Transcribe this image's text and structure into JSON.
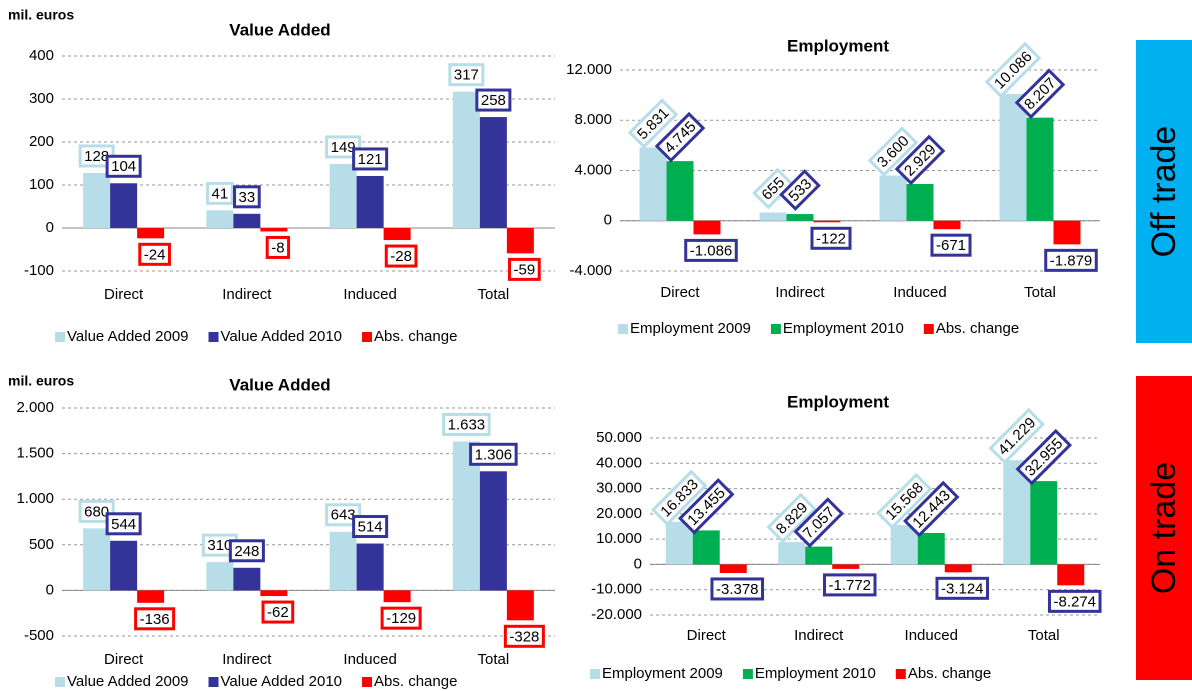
{
  "chart_data": [
    {
      "type": "bar",
      "title": "Value Added",
      "ylabel": "mil. euros",
      "categories": [
        "Direct",
        "Indirect",
        "Induced",
        "Total"
      ],
      "series": [
        {
          "name": "Value Added 2009",
          "color": "#b7dee8",
          "label_color": "#b7dee8",
          "values": [
            128,
            41,
            149,
            317
          ]
        },
        {
          "name": "Value Added 2010",
          "color": "#333399",
          "label_color": "#333399",
          "values": [
            104,
            33,
            121,
            258
          ]
        },
        {
          "name": "Abs. change",
          "color": "#ff0000",
          "label_color": "#ff0000",
          "values": [
            -24,
            -8,
            -28,
            -59
          ]
        }
      ],
      "ylim": [
        -100,
        400
      ],
      "yticks": [
        -100,
        0,
        100,
        200,
        300,
        400
      ],
      "grid": true
    },
    {
      "type": "bar",
      "title": "Employment",
      "label_rotation": -45,
      "categories": [
        "Direct",
        "Indirect",
        "Induced",
        "Total"
      ],
      "series": [
        {
          "name": "Employment 2009",
          "color": "#b7dee8",
          "label_color": "#b7dee8",
          "values": [
            5831,
            655,
            3600,
            10086
          ],
          "value_labels": [
            "5.831",
            "655",
            "3.600",
            "10.086"
          ]
        },
        {
          "name": "Employment 2010",
          "color": "#00b050",
          "label_color": "#333399",
          "values": [
            4745,
            533,
            2929,
            8207
          ],
          "value_labels": [
            "4.745",
            "533",
            "2.929",
            "8.207"
          ]
        },
        {
          "name": "Abs. change",
          "color": "#ff0000",
          "label_color": "#333399",
          "values": [
            -1086,
            -122,
            -671,
            -1879
          ],
          "value_labels": [
            "-1.086",
            "-122",
            "-671",
            "-1.879"
          ]
        }
      ],
      "ylim": [
        -4000,
        12000
      ],
      "yticks": [
        {
          "value": -4000,
          "label": "-4.000"
        },
        0,
        {
          "value": 4000,
          "label": "4.000"
        },
        {
          "value": 8000,
          "label": "8.000"
        },
        {
          "value": 12000,
          "label": "12.000"
        }
      ],
      "grid": true
    },
    {
      "type": "bar",
      "title": "Value Added",
      "ylabel": "mil. euros",
      "categories": [
        "Direct",
        "Indirect",
        "Induced",
        "Total"
      ],
      "series": [
        {
          "name": "Value Added 2009",
          "color": "#b7dee8",
          "label_color": "#b7dee8",
          "values": [
            680,
            310,
            643,
            1633
          ],
          "value_labels": [
            "680",
            "310",
            "643",
            "1.633"
          ]
        },
        {
          "name": "Value Added 2010",
          "color": "#333399",
          "label_color": "#333399",
          "values": [
            544,
            248,
            514,
            1306
          ],
          "value_labels": [
            "544",
            "248",
            "514",
            "1.306"
          ]
        },
        {
          "name": "Abs. change",
          "color": "#ff0000",
          "label_color": "#ff0000",
          "values": [
            -136,
            -62,
            -129,
            -328
          ]
        }
      ],
      "ylim": [
        -500,
        2000
      ],
      "yticks": [
        -500,
        0,
        500,
        {
          "value": 1000,
          "label": "1.000"
        },
        {
          "value": 1500,
          "label": "1.500"
        },
        {
          "value": 2000,
          "label": "2.000"
        }
      ],
      "grid": true
    },
    {
      "type": "bar",
      "title": "Employment",
      "label_rotation": -45,
      "categories": [
        "Direct",
        "Indirect",
        "Induced",
        "Total"
      ],
      "series": [
        {
          "name": "Employment 2009",
          "color": "#b7dee8",
          "label_color": "#b7dee8",
          "values": [
            16833,
            8829,
            15568,
            41229
          ],
          "value_labels": [
            "16.833",
            "8.829",
            "15.568",
            "41.229"
          ]
        },
        {
          "name": "Employment 2010",
          "color": "#00b050",
          "label_color": "#333399",
          "values": [
            13455,
            7057,
            12443,
            32955
          ],
          "value_labels": [
            "13.455",
            "7.057",
            "12.443",
            "32.955"
          ]
        },
        {
          "name": "Abs. change",
          "color": "#ff0000",
          "label_color": "#333399",
          "values": [
            -3378,
            -1772,
            -3124,
            -8274
          ],
          "value_labels": [
            "-3.378",
            "-1.772",
            "-3.124",
            "-8.274"
          ]
        }
      ],
      "ylim": [
        -20000,
        50000
      ],
      "yticks": [
        {
          "value": -20000,
          "label": "-20.000"
        },
        {
          "value": -10000,
          "label": "-10.000"
        },
        0,
        {
          "value": 10000,
          "label": "10.000"
        },
        {
          "value": 20000,
          "label": "20.000"
        },
        {
          "value": 30000,
          "label": "30.000"
        },
        {
          "value": 40000,
          "label": "40.000"
        },
        {
          "value": 50000,
          "label": "50.000"
        }
      ],
      "grid": true
    }
  ],
  "side_labels": [
    {
      "text": "Off trade",
      "color": "#00b0f0"
    },
    {
      "text": "On trade",
      "color": "#ff0000"
    }
  ]
}
